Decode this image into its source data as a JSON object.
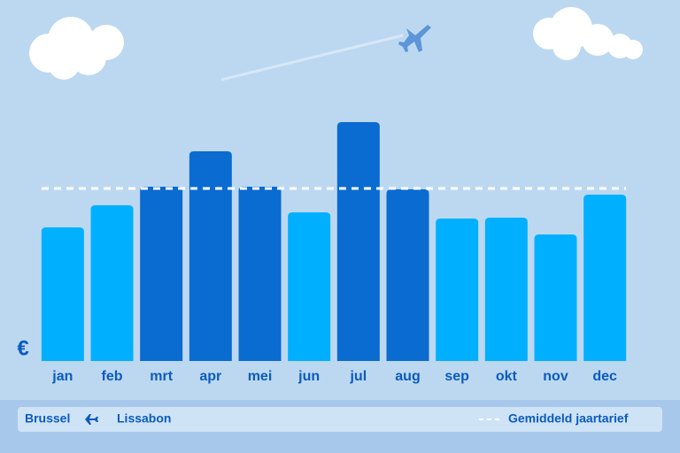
{
  "chart_data": {
    "type": "bar",
    "y_label": "€",
    "categories": [
      "jan",
      "feb",
      "mrt",
      "apr",
      "mei",
      "jun",
      "jul",
      "aug",
      "sep",
      "okt",
      "nov",
      "dec"
    ],
    "values": [
      151,
      176,
      197,
      237,
      197,
      168,
      270,
      194,
      161,
      162,
      143,
      188
    ],
    "colors": [
      "#00b0ff",
      "#00b0ff",
      "#0a6bd0",
      "#0a6bd0",
      "#0a6bd0",
      "#00b0ff",
      "#0a6bd0",
      "#0a6bd0",
      "#00b0ff",
      "#00b0ff",
      "#00b0ff",
      "#00b0ff"
    ],
    "ylim": [
      0,
      290
    ],
    "average": {
      "name": "Gemiddeld jaartarief",
      "value": 195,
      "color": "#ffffff"
    },
    "route": {
      "from": "Brussel",
      "to": "Lissabon"
    }
  }
}
